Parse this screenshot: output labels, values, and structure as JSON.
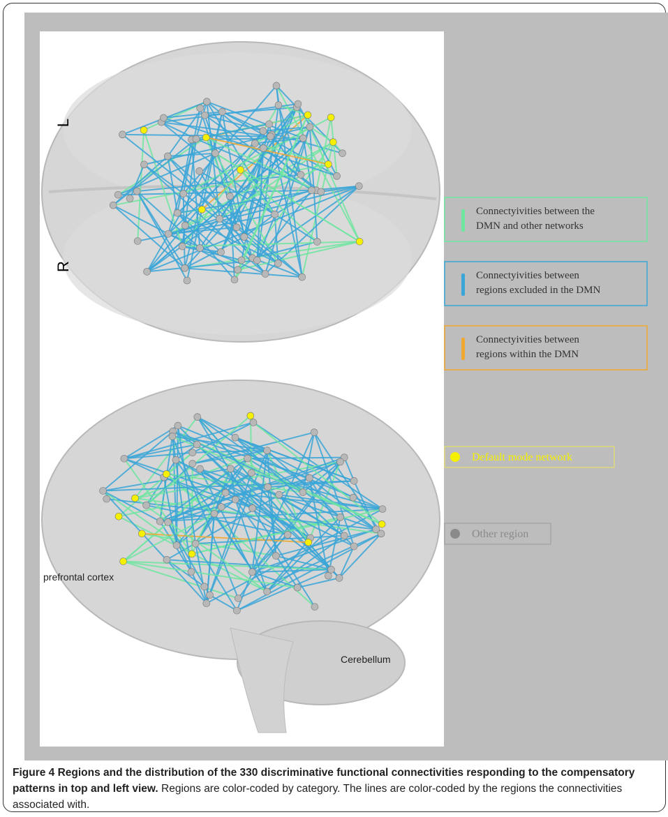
{
  "figure": {
    "panels": {
      "top_view": {
        "labels": [
          "L",
          "R"
        ]
      },
      "side_view": {
        "labels": [
          "prefrontal cortex",
          "Cerebellum"
        ]
      }
    },
    "legend": {
      "lines": [
        {
          "label": [
            "Connectyivities between the",
            "DMN and other networks"
          ],
          "color": "#6ee6a0"
        },
        {
          "label": [
            "Connectyivities between",
            "regions excluded in the DMN"
          ],
          "color": "#3aa6d8"
        },
        {
          "label": [
            "Connectyivities between",
            "regions within the DMN"
          ],
          "color": "#f0a830"
        }
      ],
      "nodes": [
        {
          "label": "Default mode network",
          "color": "#f4f000"
        },
        {
          "label": "Other region",
          "color": "#8a8a8a"
        }
      ]
    },
    "caption": {
      "title": "Figure 4 Regions and the distribution of the 330 discriminative functional connectivities responding to the compensatory patterns in top and left view.",
      "text": "Regions are color-coded by category. The lines are color-coded by the regions the connectivities associated with."
    }
  }
}
